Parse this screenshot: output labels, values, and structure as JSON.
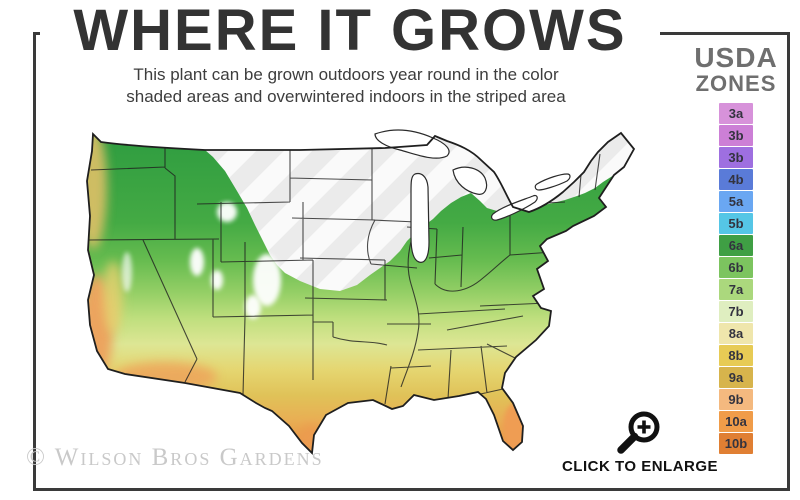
{
  "header": {
    "title": "WHERE IT GROWS",
    "subtitle_line1": "This plant can be grown outdoors year round in the color",
    "subtitle_line2": "shaded areas and overwintered indoors in the striped area"
  },
  "legend": {
    "title_line1": "USDA",
    "title_line2": "ZONES",
    "zones": [
      {
        "label": "3a",
        "color": "#d792da"
      },
      {
        "label": "3b",
        "color": "#cc7fd6"
      },
      {
        "label": "3b",
        "color": "#9e6fe0"
      },
      {
        "label": "4b",
        "color": "#5a7bd8"
      },
      {
        "label": "5a",
        "color": "#6aa7f2"
      },
      {
        "label": "5b",
        "color": "#55c6e6"
      },
      {
        "label": "6a",
        "color": "#3f9f44"
      },
      {
        "label": "6b",
        "color": "#7cc45f"
      },
      {
        "label": "7a",
        "color": "#abd87d"
      },
      {
        "label": "7b",
        "color": "#dfeec0"
      },
      {
        "label": "8a",
        "color": "#efe6ac"
      },
      {
        "label": "8b",
        "color": "#e7cb55"
      },
      {
        "label": "9a",
        "color": "#d7b44c"
      },
      {
        "label": "9b",
        "color": "#f4b97f"
      },
      {
        "label": "10a",
        "color": "#f09c49"
      },
      {
        "label": "10b",
        "color": "#e07f33"
      }
    ]
  },
  "map": {
    "description": "USDA hardiness zone map of the contiguous United States; color-shaded growing region, diagonally striped overwinter-indoors region in the north",
    "stripe_base_color": "#ebebeb",
    "stripe_color": "#fafafa",
    "outline_color": "#1f1f1f",
    "north_color": "#2e9c40",
    "mid_color": "#bfdf7e",
    "south_color": "#e78e3d"
  },
  "footer": {
    "watermark": "© Wilson Bros Gardens",
    "enlarge_label": "CLICK TO ENLARGE"
  }
}
